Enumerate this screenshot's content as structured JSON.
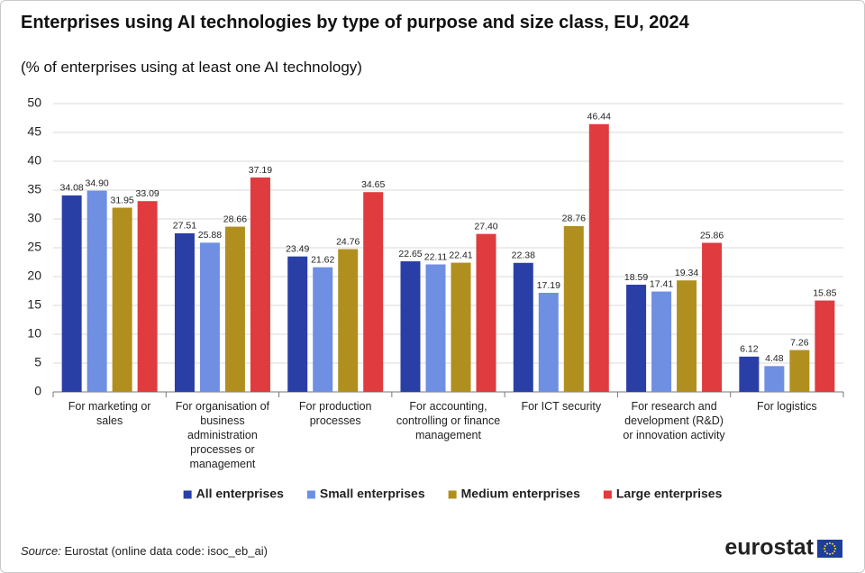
{
  "chart_data": {
    "type": "bar",
    "title": "Enterprises using AI technologies by type of purpose and size class, EU, 2024",
    "subtitle": "(% of enterprises using at least one AI technology)",
    "categories": [
      "For marketing or sales",
      "For organisation of business administration processes or management",
      "For production processes",
      "For accounting, controlling or finance management",
      "For ICT security",
      "For research and development (R&D) or innovation activity",
      "For logistics"
    ],
    "series": [
      {
        "name": "All enterprises",
        "color": "#2a3fa6",
        "values": [
          34.08,
          27.51,
          23.49,
          22.65,
          22.38,
          18.59,
          6.12
        ],
        "value_labels": [
          "34.08",
          "27.51",
          "23.49",
          "22.65",
          "22.38",
          "18.59",
          "6.12"
        ]
      },
      {
        "name": "Small enterprises",
        "color": "#6e8fe2",
        "values": [
          34.9,
          25.88,
          21.62,
          22.11,
          17.19,
          17.41,
          4.48
        ],
        "value_labels": [
          "34.90",
          "25.88",
          "21.62",
          "22.11",
          "17.19",
          "17.41",
          "4.48"
        ]
      },
      {
        "name": "Medium enterprises",
        "color": "#b18f1f",
        "values": [
          31.95,
          28.66,
          24.76,
          22.41,
          28.76,
          19.34,
          7.26
        ],
        "value_labels": [
          "31.95",
          "28.66",
          "24.76",
          "22.41",
          "28.76",
          "19.34",
          "7.26"
        ]
      },
      {
        "name": "Large enterprises",
        "color": "#e03b3e",
        "values": [
          33.09,
          37.19,
          34.65,
          27.4,
          46.44,
          25.86,
          15.85
        ],
        "value_labels": [
          "33.09",
          "37.19",
          "34.65",
          "27.40",
          "46.44",
          "25.86",
          "15.85"
        ]
      }
    ],
    "ylim": [
      0,
      50
    ],
    "yticks": [
      0,
      5,
      10,
      15,
      20,
      25,
      30,
      35,
      40,
      45,
      50
    ],
    "grid": true,
    "legend": "bottom",
    "source_label": "Source:",
    "source": "Eurostat (online data code: isoc_eb_ai)",
    "logo": "eurostat"
  }
}
